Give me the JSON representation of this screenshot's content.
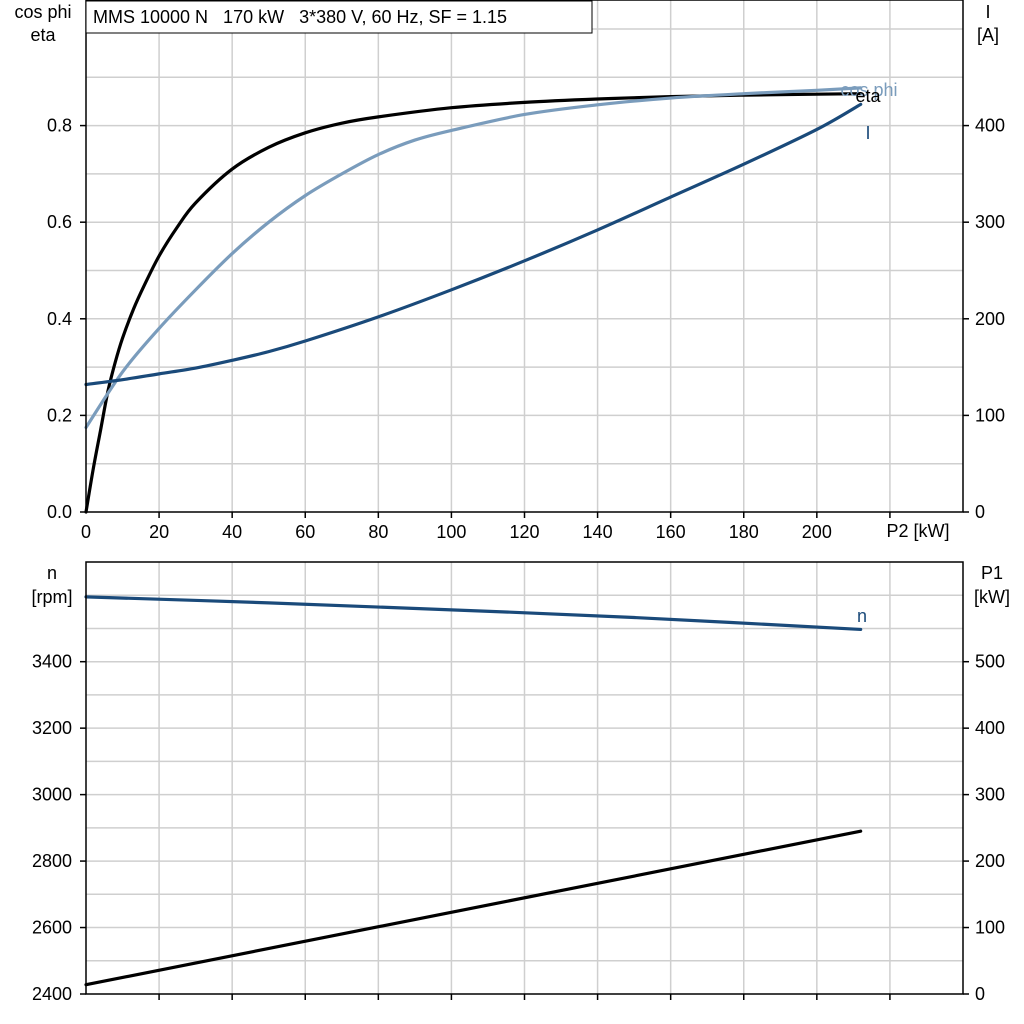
{
  "chart_data": [
    {
      "type": "line",
      "title": "MMS 10000 N   170 kW   3*380 V, 60 Hz, SF = 1.15",
      "xlabel": "P2 [kW]",
      "xlim": [
        0,
        240
      ],
      "x_ticks": [
        0,
        20,
        40,
        60,
        80,
        100,
        120,
        140,
        160,
        180,
        200
      ],
      "ylabel_left": [
        "cos phi",
        "eta"
      ],
      "ylim_left": [
        0,
        1.06
      ],
      "y_ticks_left": [
        "0.0",
        "0.2",
        "0.4",
        "0.6",
        "0.8"
      ],
      "ylabel_right": [
        "I",
        "[A]"
      ],
      "ylim_right": [
        0,
        530
      ],
      "y_ticks_right": [
        "0",
        "100",
        "200",
        "300",
        "400"
      ],
      "grid": true,
      "series": [
        {
          "name": "eta",
          "axis": "left",
          "color": "#000000",
          "x": [
            0,
            2,
            4,
            6,
            8,
            10,
            13,
            16,
            20,
            25,
            30,
            40,
            50,
            60,
            70,
            80,
            100,
            120,
            140,
            160,
            180,
            200,
            212
          ],
          "y": [
            0.0,
            0.09,
            0.17,
            0.25,
            0.31,
            0.36,
            0.42,
            0.47,
            0.53,
            0.59,
            0.64,
            0.71,
            0.755,
            0.785,
            0.805,
            0.818,
            0.837,
            0.848,
            0.855,
            0.86,
            0.863,
            0.865,
            0.866
          ]
        },
        {
          "name": "cos phi",
          "axis": "left",
          "color": "#7a9cbc",
          "x": [
            0,
            10,
            20,
            30,
            40,
            50,
            60,
            70,
            80,
            90,
            100,
            120,
            140,
            160,
            180,
            200,
            212
          ],
          "y": [
            0.175,
            0.29,
            0.38,
            0.46,
            0.535,
            0.6,
            0.655,
            0.7,
            0.74,
            0.77,
            0.79,
            0.823,
            0.843,
            0.857,
            0.866,
            0.873,
            0.878
          ]
        },
        {
          "name": "I",
          "axis": "right",
          "color": "#1a4a7a",
          "x": [
            0,
            10,
            20,
            30,
            40,
            50,
            60,
            80,
            100,
            120,
            140,
            160,
            180,
            200,
            212
          ],
          "y": [
            132,
            137,
            143,
            149,
            157,
            166,
            177,
            202,
            230,
            260,
            292,
            326,
            360,
            396,
            422
          ]
        }
      ]
    },
    {
      "type": "line",
      "xlim": [
        0,
        240
      ],
      "ylabel_left": [
        "n",
        "[rpm]"
      ],
      "ylim_left": [
        2400,
        3700
      ],
      "y_ticks_left": [
        "2400",
        "2600",
        "2800",
        "3000",
        "3200",
        "3400"
      ],
      "ylabel_right": [
        "P1",
        "[kW]"
      ],
      "ylim_right": [
        0,
        650
      ],
      "y_ticks_right": [
        "0",
        "100",
        "200",
        "300",
        "400",
        "500"
      ],
      "grid": true,
      "series": [
        {
          "name": "n",
          "axis": "left",
          "color": "#1a4a7a",
          "x": [
            0,
            50,
            100,
            150,
            212
          ],
          "y": [
            3595,
            3577,
            3556,
            3533,
            3497
          ]
        },
        {
          "name": "",
          "axis": "right",
          "color": "#000000",
          "x": [
            0,
            212
          ],
          "y": [
            14,
            245
          ]
        }
      ]
    }
  ]
}
